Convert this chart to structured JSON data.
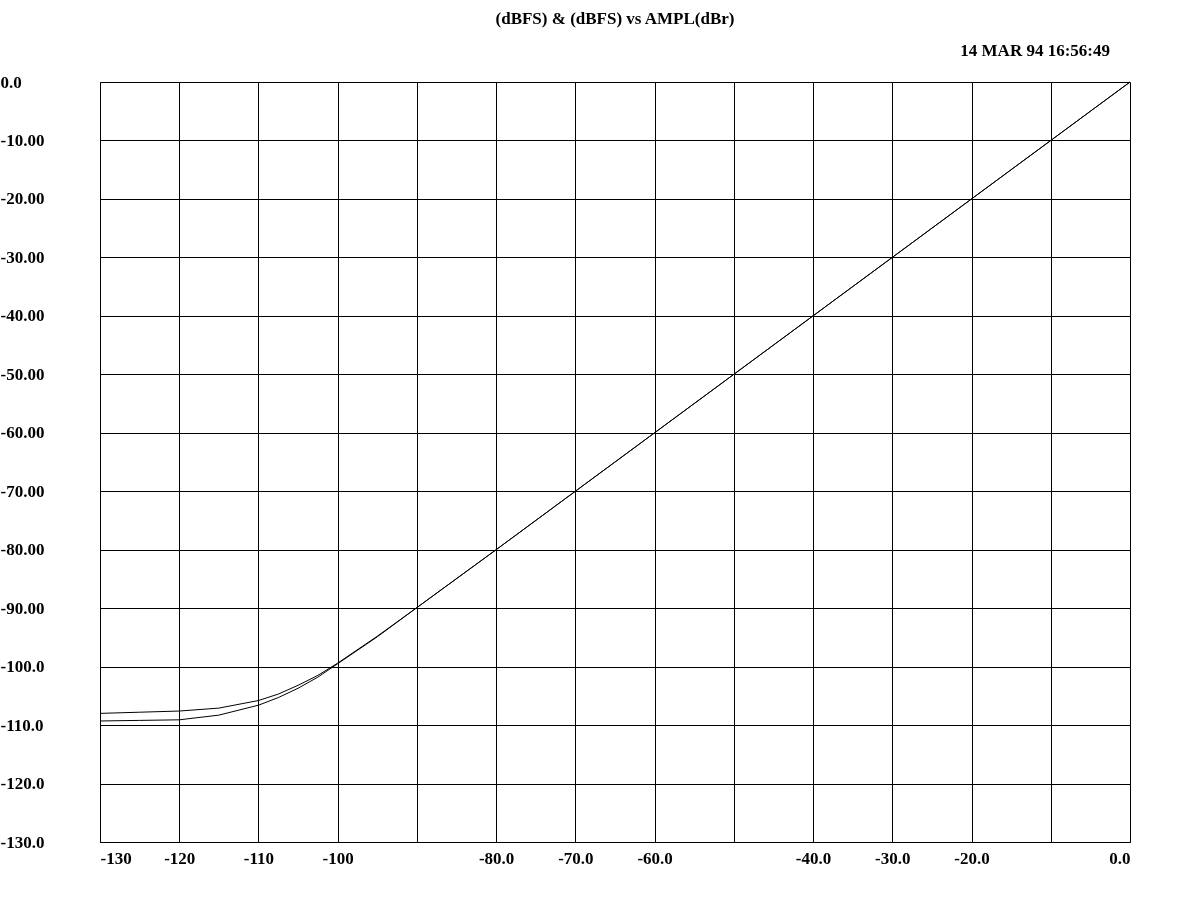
{
  "chart_data": {
    "type": "line",
    "title": "(dBFS)     &     (dBFS)     vs     AMPL(dBr)",
    "annotations": [
      "14 MAR 94 16:56:49"
    ],
    "x": [
      -130,
      -125,
      -120,
      -115,
      -110,
      -107.5,
      -105,
      -102.5,
      -100,
      -95,
      -90,
      -80,
      -70,
      -60,
      -50,
      -40,
      -30,
      -20,
      -10,
      0
    ],
    "series": [
      {
        "color": "#000000",
        "values": [
          -108.0,
          -107.8,
          -107.6,
          -107.1,
          -105.8,
          -104.7,
          -103.2,
          -101.5,
          -99.4,
          -94.8,
          -89.9,
          -80,
          -70,
          -60,
          -50,
          -40,
          -30,
          -20,
          -10,
          0
        ]
      },
      {
        "color": "#000000",
        "values": [
          -109.3,
          -109.2,
          -109.1,
          -108.3,
          -106.6,
          -105.3,
          -103.7,
          -101.8,
          -99.5,
          -94.9,
          -89.9,
          -80,
          -70,
          -60,
          -50,
          -40,
          -30,
          -20,
          -10,
          0
        ]
      }
    ],
    "xlim": [
      -130,
      0
    ],
    "xticks": [
      -130,
      -120,
      -110,
      -100,
      {
        "value": -90,
        "label": null
      },
      {
        "value": -80,
        "label": "-80.0"
      },
      {
        "value": -70,
        "label": "-70.0"
      },
      {
        "value": -60,
        "label": "-60.0"
      },
      {
        "value": -50,
        "label": null
      },
      {
        "value": -40,
        "label": "-40.0"
      },
      {
        "value": -30,
        "label": "-30.0"
      },
      {
        "value": -20,
        "label": "-20.0"
      },
      {
        "value": -10,
        "label": null
      },
      {
        "value": 0,
        "label": "0.0"
      }
    ],
    "ylim": [
      -130,
      0
    ],
    "yticks": [
      {
        "value": 0,
        "label": "0.0"
      },
      {
        "value": -10,
        "label": "-10.00"
      },
      {
        "value": -20,
        "label": "-20.00"
      },
      {
        "value": -30,
        "label": "-30.00"
      },
      {
        "value": -40,
        "label": "-40.00"
      },
      {
        "value": -50,
        "label": "-50.00"
      },
      {
        "value": -60,
        "label": "-60.00"
      },
      {
        "value": -70,
        "label": "-70.00"
      },
      {
        "value": -80,
        "label": "-80.00"
      },
      {
        "value": -90,
        "label": "-90.00"
      },
      {
        "value": -100,
        "label": "-100.0"
      },
      {
        "value": -110,
        "label": "-110.0"
      },
      {
        "value": -120,
        "label": "-120.0"
      },
      {
        "value": -130,
        "label": "-130.0"
      }
    ],
    "grid": true,
    "legend": false,
    "marker": "none",
    "line_style": "solid"
  }
}
